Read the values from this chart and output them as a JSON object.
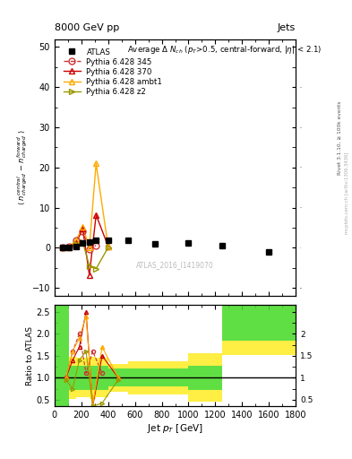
{
  "title_top": "8000 GeV pp",
  "title_top_right": "Jets",
  "annotation": "ATLAS_2016_I1419070",
  "rivet_label": "Rivet 3.1.10, ≥ 100k events",
  "mcplots_label": "mcplots.cern.ch [arXiv:1306.3436]",
  "main_annotation": "Average $\\Delta$ $N_{ch}$ ($p_T$>0.5, central-forward, $|\\eta|$ < 2.1)",
  "ylabel_main": "$\\langle$ $n^{central}_{charged}$ $-$ $n^{forward}_{charged}$ $\\rangle$",
  "ylabel_ratio": "Ratio to ATLAS",
  "xlabel": "Jet $p_T$ [GeV]",
  "ylim_main": [
    -12,
    52
  ],
  "ylim_ratio": [
    0.35,
    2.65
  ],
  "xlim": [
    0,
    1800
  ],
  "atlas_x": [
    60,
    110,
    160,
    210,
    260,
    310,
    400,
    550,
    750,
    1000,
    1250,
    1600
  ],
  "atlas_y": [
    0.2,
    0.1,
    0.3,
    1.2,
    1.5,
    1.8,
    1.8,
    1.8,
    1.0,
    1.2,
    0.5,
    -1.0
  ],
  "atlas_color": "#000000",
  "pythia345_x": [
    60,
    110,
    160,
    210,
    260,
    310
  ],
  "pythia345_y": [
    0.1,
    0.3,
    1.8,
    4.2,
    -0.3,
    0.6
  ],
  "pythia345_color": "#cc3333",
  "pythia370_x": [
    60,
    110,
    160,
    210,
    260,
    310,
    400
  ],
  "pythia370_y": [
    0.1,
    0.2,
    1.2,
    4.8,
    -6.8,
    8.2,
    0.4
  ],
  "pythia370_color": "#cc0000",
  "pythia_ambt1_x": [
    60,
    110,
    160,
    210,
    260,
    310,
    400
  ],
  "pythia_ambt1_y": [
    0.1,
    0.3,
    1.8,
    5.2,
    0.2,
    21.0,
    0.3
  ],
  "pythia_ambt1_color": "#ffaa00",
  "pythia_z2_x": [
    60,
    110,
    160,
    210,
    260,
    310,
    400
  ],
  "pythia_z2_y": [
    0.05,
    0.0,
    0.9,
    1.5,
    -4.5,
    -5.2,
    0.1
  ],
  "pythia_z2_color": "#999900",
  "ratio_bin_edges": [
    0,
    110,
    160,
    210,
    260,
    310,
    400,
    550,
    750,
    1000,
    1250,
    1600,
    1800
  ],
  "ratio_green_lo": [
    0.35,
    0.72,
    0.72,
    0.72,
    0.72,
    0.72,
    0.8,
    0.8,
    0.8,
    0.72,
    1.85,
    1.85
  ],
  "ratio_green_hi": [
    2.65,
    1.28,
    1.28,
    1.28,
    1.28,
    1.28,
    1.2,
    1.2,
    1.2,
    1.28,
    2.65,
    2.65
  ],
  "ratio_yellow_lo": [
    0.35,
    0.52,
    0.55,
    0.55,
    0.52,
    0.55,
    0.68,
    0.62,
    0.62,
    0.45,
    1.52,
    1.52
  ],
  "ratio_yellow_hi": [
    2.65,
    1.48,
    1.45,
    1.45,
    1.48,
    1.45,
    1.32,
    1.38,
    1.38,
    1.55,
    2.65,
    2.65
  ],
  "ratio_pythia345_x": [
    85,
    135,
    185,
    235,
    285,
    355
  ],
  "ratio_pythia345_y": [
    1.0,
    1.6,
    2.0,
    1.1,
    1.6,
    1.1
  ],
  "ratio_pythia370_x": [
    85,
    135,
    185,
    235,
    285,
    355,
    475
  ],
  "ratio_pythia370_y": [
    1.0,
    1.4,
    1.7,
    2.5,
    0.35,
    1.5,
    1.0
  ],
  "ratio_ambt1_x": [
    85,
    135,
    185,
    235,
    285,
    355,
    475
  ],
  "ratio_ambt1_y": [
    1.0,
    1.6,
    1.9,
    2.4,
    0.38,
    1.7,
    1.0
  ],
  "ratio_z2_x": [
    85,
    135,
    185,
    235,
    285,
    355,
    475
  ],
  "ratio_z2_y": [
    0.95,
    0.75,
    1.4,
    1.6,
    0.35,
    0.42,
    0.95
  ],
  "green_color": "#44dd44",
  "yellow_color": "#ffee44",
  "background_color": "#ffffff"
}
